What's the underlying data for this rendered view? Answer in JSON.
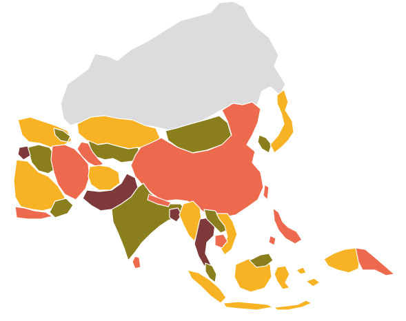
{
  "map": {
    "type": "choropleth-regions",
    "background": "#ffffff",
    "palette": {
      "gray": "#dcdcde",
      "orange": "#ee6a4f",
      "yellow": "#f7b324",
      "olive": "#8a7f1c",
      "maroon": "#7e3a3b"
    },
    "regions": [
      {
        "name": "russia",
        "color": "gray"
      },
      {
        "name": "china",
        "color": "orange"
      },
      {
        "name": "mongolia",
        "color": "olive"
      },
      {
        "name": "kazakhstan",
        "color": "yellow"
      },
      {
        "name": "turkey",
        "color": "yellow"
      },
      {
        "name": "caucasus",
        "color": "olive"
      },
      {
        "name": "iran",
        "color": "orange"
      },
      {
        "name": "iraq",
        "color": "olive"
      },
      {
        "name": "arabia",
        "color": "yellow"
      },
      {
        "name": "yemen-oman",
        "color": "orange"
      },
      {
        "name": "oman",
        "color": "olive"
      },
      {
        "name": "central-asia",
        "color": "olive"
      },
      {
        "name": "turkmenistan",
        "color": "orange"
      },
      {
        "name": "afghanistan",
        "color": "yellow"
      },
      {
        "name": "pakistan",
        "color": "maroon"
      },
      {
        "name": "india",
        "color": "olive"
      },
      {
        "name": "nepal",
        "color": "orange"
      },
      {
        "name": "bangladesh",
        "color": "maroon"
      },
      {
        "name": "myanmar",
        "color": "yellow"
      },
      {
        "name": "thailand",
        "color": "maroon"
      },
      {
        "name": "laos",
        "color": "olive"
      },
      {
        "name": "vietnam",
        "color": "yellow"
      },
      {
        "name": "cambodia",
        "color": "orange"
      },
      {
        "name": "malay-peninsula",
        "color": "olive"
      },
      {
        "name": "sri-lanka",
        "color": "orange"
      },
      {
        "name": "korea",
        "color": "olive"
      },
      {
        "name": "japan",
        "color": "yellow"
      },
      {
        "name": "taiwan",
        "color": "orange"
      },
      {
        "name": "philippines",
        "color": "orange"
      },
      {
        "name": "sumatra",
        "color": "yellow"
      },
      {
        "name": "java",
        "color": "yellow"
      },
      {
        "name": "borneo",
        "color": "yellow"
      },
      {
        "name": "sabah",
        "color": "olive"
      },
      {
        "name": "sulawesi",
        "color": "yellow"
      },
      {
        "name": "lesser-sunda",
        "color": "yellow"
      },
      {
        "name": "papua",
        "color": "yellow"
      },
      {
        "name": "papua-new-guinea",
        "color": "orange"
      }
    ]
  }
}
